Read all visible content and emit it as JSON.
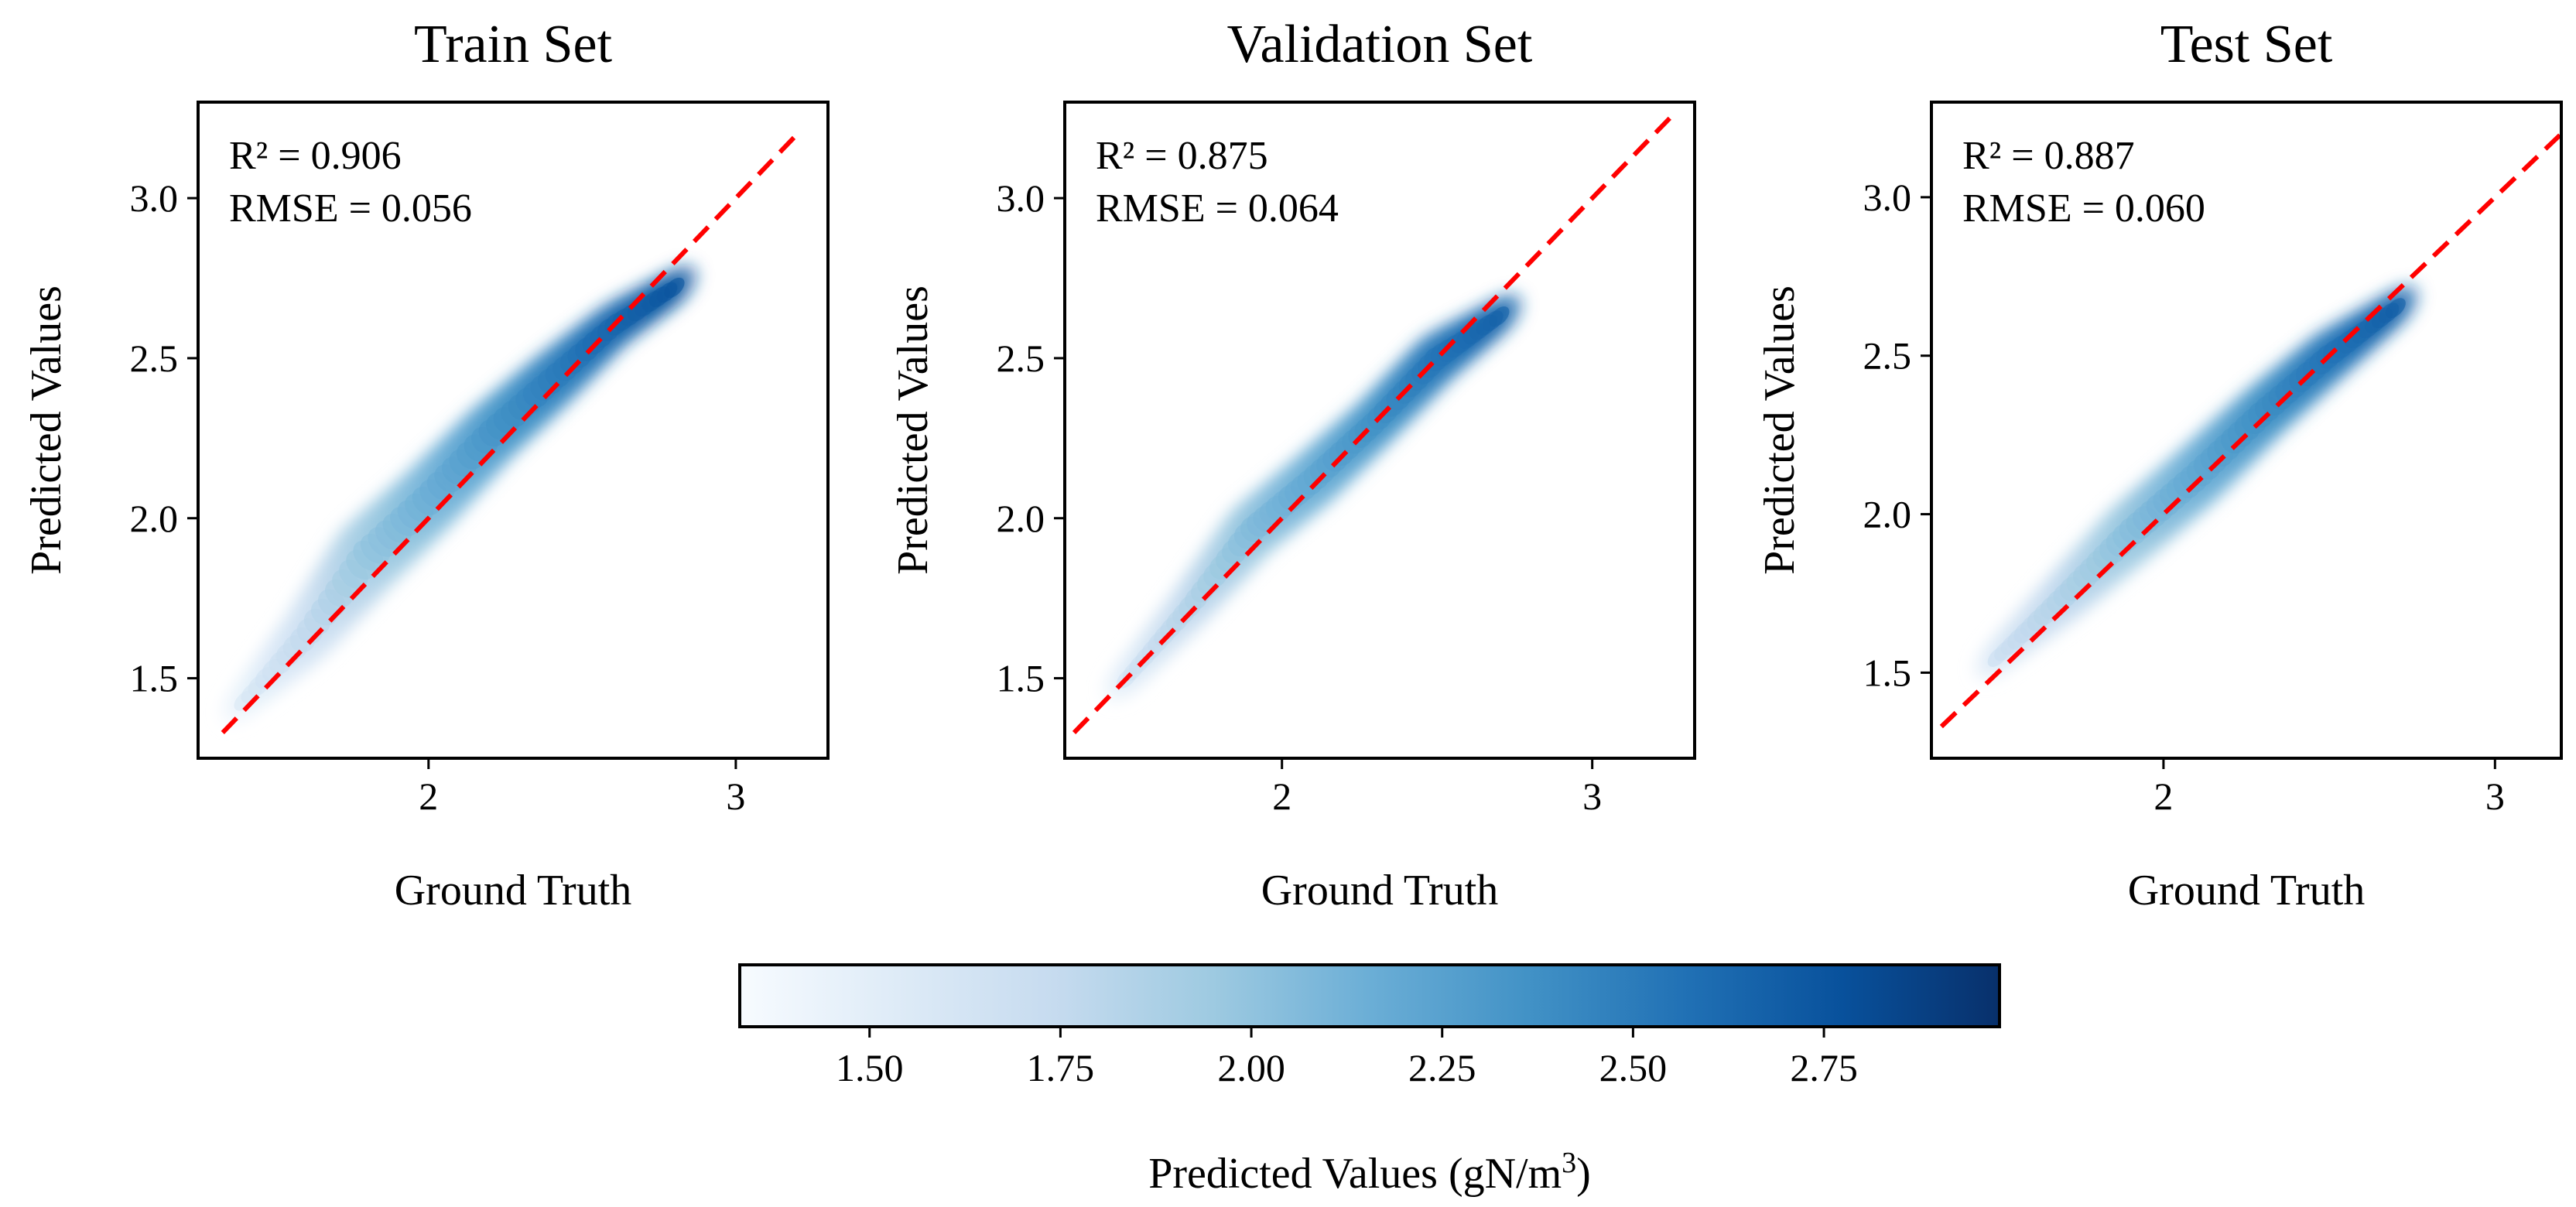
{
  "chart_data": [
    {
      "type": "scatter",
      "title": "Train Set",
      "xlabel": "Ground Truth",
      "ylabel": "Predicted Values",
      "annotations": [
        "R² = 0.906",
        "RMSE = 0.056"
      ],
      "xlim": [
        1.25,
        3.3
      ],
      "ylim": [
        1.25,
        3.3
      ],
      "xticks": [
        2,
        3
      ],
      "yticks": [
        1.5,
        2.0,
        2.5,
        3.0
      ],
      "ytick_labels": [
        "1.5",
        "2.0",
        "2.5",
        "3.0"
      ],
      "reference_line": {
        "x": [
          1.33,
          3.2
        ],
        "y": [
          1.33,
          3.2
        ],
        "style": "dashed",
        "color": "#ff0000"
      },
      "density_band": {
        "x": [
          1.4,
          1.6,
          1.8,
          2.0,
          2.2,
          2.4,
          2.6,
          2.8
        ],
        "y_center": [
          1.43,
          1.63,
          1.88,
          2.06,
          2.26,
          2.43,
          2.6,
          2.72
        ],
        "y_spread": [
          0.05,
          0.09,
          0.12,
          0.11,
          0.1,
          0.09,
          0.07,
          0.05
        ]
      }
    },
    {
      "type": "scatter",
      "title": "Validation Set",
      "xlabel": "Ground Truth",
      "ylabel": "Predicted Values",
      "annotations": [
        "R² = 0.875",
        "RMSE = 0.064"
      ],
      "xlim": [
        1.3,
        3.33
      ],
      "ylim": [
        1.25,
        3.3
      ],
      "xticks": [
        2,
        3
      ],
      "yticks": [
        1.5,
        2.0,
        2.5,
        3.0
      ],
      "ytick_labels": [
        "1.5",
        "2.0",
        "2.5",
        "3.0"
      ],
      "reference_line": {
        "x": [
          1.33,
          3.25
        ],
        "y": [
          1.33,
          3.25
        ],
        "style": "dashed",
        "color": "#ff0000"
      },
      "density_band": {
        "x": [
          1.5,
          1.7,
          1.9,
          2.1,
          2.3,
          2.5,
          2.7
        ],
        "y_center": [
          1.5,
          1.72,
          1.96,
          2.12,
          2.3,
          2.5,
          2.63
        ],
        "y_spread": [
          0.05,
          0.07,
          0.09,
          0.09,
          0.08,
          0.08,
          0.05
        ]
      }
    },
    {
      "type": "scatter",
      "title": "Test Set",
      "xlabel": "Ground Truth",
      "ylabel": "Predicted Values",
      "annotations": [
        "R² = 0.887",
        "RMSE = 0.060"
      ],
      "xlim": [
        1.3,
        3.2
      ],
      "ylim": [
        1.23,
        3.3
      ],
      "xticks": [
        2,
        3
      ],
      "yticks": [
        1.5,
        2.0,
        2.5,
        3.0
      ],
      "ytick_labels": [
        "1.5",
        "2.0",
        "2.5",
        "3.0"
      ],
      "reference_line": {
        "x": [
          1.33,
          3.2
        ],
        "y": [
          1.33,
          3.2
        ],
        "style": "dashed",
        "color": "#ff0000"
      },
      "density_band": {
        "x": [
          1.5,
          1.7,
          1.9,
          2.1,
          2.3,
          2.5,
          2.7
        ],
        "y_center": [
          1.55,
          1.74,
          1.94,
          2.12,
          2.32,
          2.5,
          2.65
        ],
        "y_spread": [
          0.05,
          0.08,
          0.1,
          0.1,
          0.09,
          0.08,
          0.05
        ]
      }
    }
  ],
  "colorbar": {
    "label": "Predicted Values (gN/m",
    "label_sup": "3",
    "label_close": ")",
    "range": [
      1.33,
      2.98
    ],
    "ticks": [
      1.5,
      1.75,
      2.0,
      2.25,
      2.5,
      2.75
    ],
    "tick_labels": [
      "1.50",
      "1.75",
      "2.00",
      "2.25",
      "2.50",
      "2.75"
    ],
    "colormap": "Blues",
    "colors": [
      "#f7fbff",
      "#deebf7",
      "#c6dbef",
      "#9ecae1",
      "#6baed6",
      "#4292c6",
      "#2171b5",
      "#08519c",
      "#08306b"
    ]
  }
}
